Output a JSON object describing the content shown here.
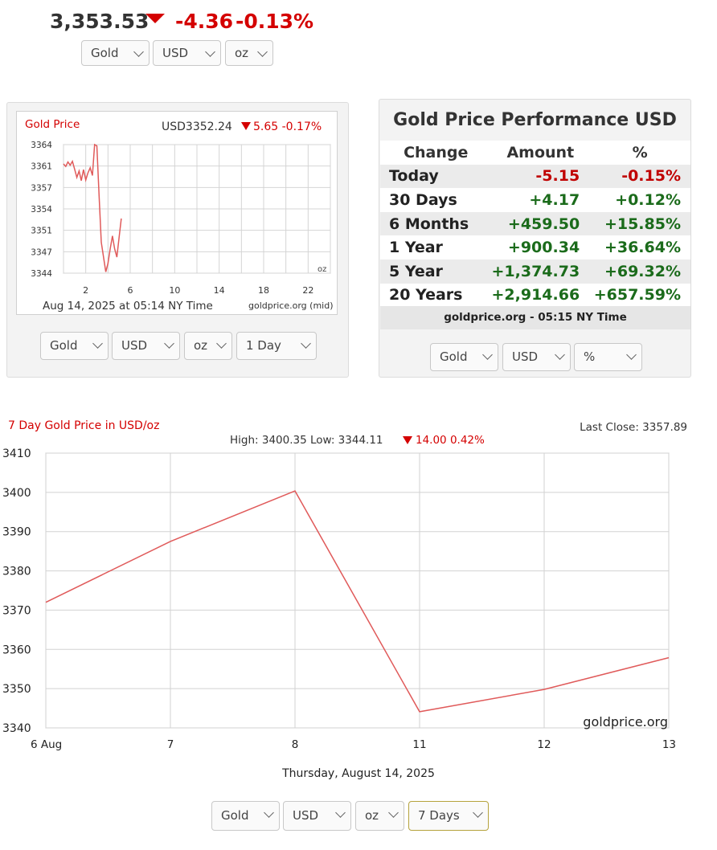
{
  "header": {
    "price": "3,353.53",
    "change_abs": "-4.36",
    "change_pct": "-0.13%",
    "selects": {
      "metal": "Gold",
      "currency": "USD",
      "unit": "oz"
    }
  },
  "mini_chart": {
    "title": "Gold Price",
    "price_label": "USD3352.24",
    "change": "5.65 -0.17%",
    "unit_label": "oz",
    "footer_date": "Aug 14, 2025 at 05:14 NY Time",
    "footer_source": "goldprice.org (mid)",
    "selects": {
      "metal": "Gold",
      "currency": "USD",
      "unit": "oz",
      "range": "1 Day"
    },
    "chart_data": {
      "type": "line",
      "title": "Gold Price",
      "xlabel": "",
      "ylabel": "",
      "xlim": [
        0,
        24
      ],
      "ylim": [
        3344,
        3364
      ],
      "y_ticks": [
        "3364",
        "3361",
        "3357",
        "3354",
        "3351",
        "3347",
        "3344"
      ],
      "x_ticks": [
        "2",
        "6",
        "10",
        "14",
        "18",
        "22"
      ],
      "x": [
        0.0,
        0.2,
        0.4,
        0.6,
        0.8,
        1.0,
        1.2,
        1.4,
        1.6,
        1.8,
        2.0,
        2.2,
        2.4,
        2.6,
        2.8,
        3.0,
        3.2,
        3.4,
        3.6,
        3.8,
        4.0,
        4.2,
        4.4,
        4.6,
        4.8,
        5.0,
        5.2
      ],
      "y": [
        3361.0,
        3360.6,
        3361.3,
        3360.8,
        3361.4,
        3360.2,
        3358.9,
        3359.9,
        3358.4,
        3360.1,
        3358.5,
        3359.6,
        3360.4,
        3359.2,
        3364.0,
        3363.8,
        3356.0,
        3348.8,
        3346.5,
        3344.2,
        3345.5,
        3347.8,
        3349.8,
        3347.8,
        3346.5,
        3349.6,
        3352.5
      ]
    }
  },
  "performance": {
    "title": "Gold Price Performance USD",
    "headers": [
      "Change",
      "Amount",
      "%"
    ],
    "rows": [
      {
        "label": "Today",
        "amount": "-5.15",
        "pct": "-0.15%"
      },
      {
        "label": "30 Days",
        "amount": "+4.17",
        "pct": "+0.12%"
      },
      {
        "label": "6 Months",
        "amount": "+459.50",
        "pct": "+15.85%"
      },
      {
        "label": "1 Year",
        "amount": "+900.34",
        "pct": "+36.64%"
      },
      {
        "label": "5 Year",
        "amount": "+1,374.73",
        "pct": "+69.32%"
      },
      {
        "label": "20 Years",
        "amount": "+2,914.66",
        "pct": "+657.59%"
      }
    ],
    "footer": "goldprice.org - 05:15 NY Time",
    "selects": {
      "metal": "Gold",
      "currency": "USD",
      "unit": "%"
    }
  },
  "big_chart": {
    "title": "7 Day Gold Price in USD/oz",
    "last_close": "Last Close: 3357.89",
    "stats_prefix": "High: 3400.35 Low: 3344.11",
    "stats_change": "14.00 0.42%",
    "watermark": "goldprice.org",
    "date_label": "Thursday, August 14, 2025",
    "selects": {
      "metal": "Gold",
      "currency": "USD",
      "unit": "oz",
      "range": "7 Days"
    },
    "chart_data": {
      "type": "line",
      "title": "7 Day Gold Price in USD/oz",
      "xlabel": "",
      "ylabel": "",
      "categories": [
        "6 Aug",
        "7",
        "8",
        "11",
        "12",
        "13"
      ],
      "values": [
        3372.0,
        3387.5,
        3400.35,
        3344.11,
        3349.8,
        3357.89
      ],
      "ylim": [
        3340,
        3410
      ],
      "y_ticks": [
        "3410",
        "3400",
        "3390",
        "3380",
        "3370",
        "3360",
        "3350",
        "3340"
      ],
      "grid": true
    }
  },
  "colors": {
    "red": "#d40000",
    "green": "#1b6b1b",
    "line": "#e05a5a"
  }
}
